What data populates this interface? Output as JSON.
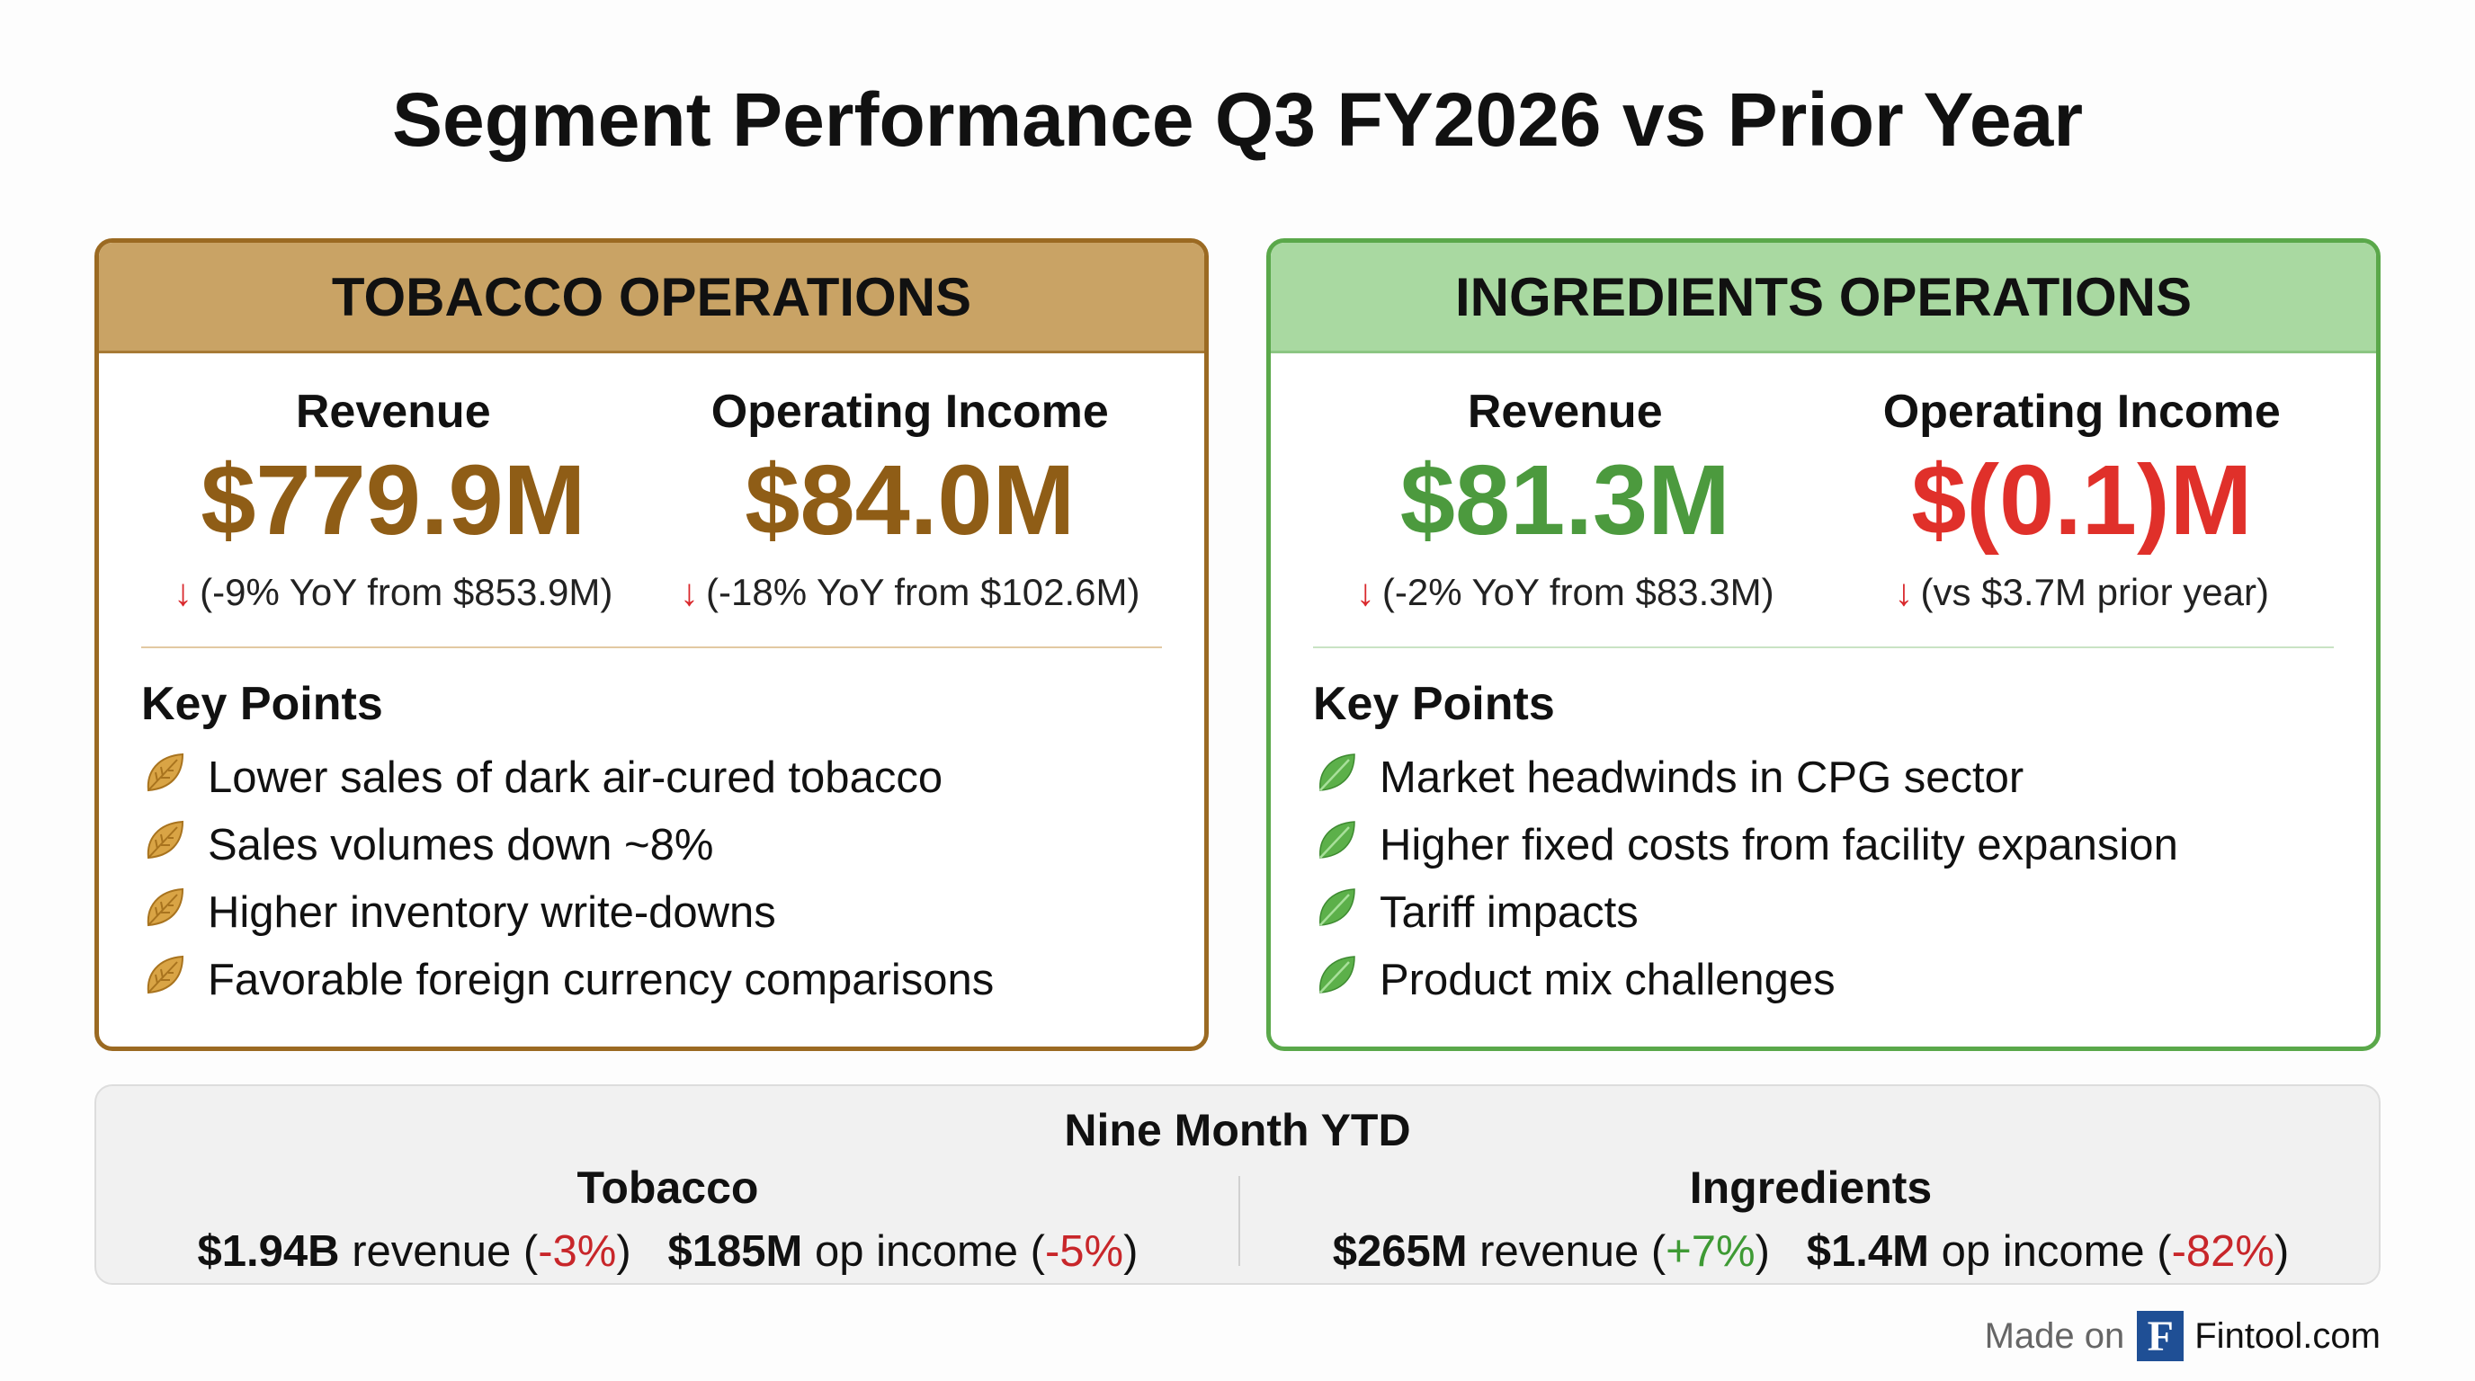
{
  "title": "Segment Performance Q3 FY2026 vs Prior Year",
  "colors": {
    "tobacco_accent": "#8f5d16",
    "tobacco_header": "#c9a365",
    "ingredients_header": "#a9d9a1",
    "green": "#4c9a3e",
    "red": "#e0302a"
  },
  "tobacco": {
    "header": "TOBACCO OPERATIONS",
    "revenue": {
      "label": "Revenue",
      "value": "$779.9M",
      "change": "(-9% YoY from $853.9M)",
      "icon": "arrow-down-icon"
    },
    "op_income": {
      "label": "Operating Income",
      "value": "$84.0M",
      "change": "(-18% YoY from $102.6M)",
      "icon": "arrow-down-icon"
    },
    "key_points_title": "Key Points",
    "bullet_icon": "tobacco-leaf-icon",
    "key_points": [
      "Lower sales of dark air-cured tobacco",
      "Sales volumes down ~8%",
      "Higher inventory write-downs",
      "Favorable foreign currency comparisons"
    ]
  },
  "ingredients": {
    "header": "INGREDIENTS OPERATIONS",
    "revenue": {
      "label": "Revenue",
      "value": "$81.3M",
      "change": "(-2% YoY from $83.3M)",
      "icon": "arrow-down-icon"
    },
    "op_income": {
      "label": "Operating Income",
      "value": "$(0.1)M",
      "change": "(vs $3.7M prior year)",
      "icon": "arrow-down-icon"
    },
    "key_points_title": "Key Points",
    "bullet_icon": "green-leaf-icon",
    "key_points": [
      "Market headwinds in CPG sector",
      "Higher fixed costs from facility expansion",
      "Tariff impacts",
      "Product mix challenges"
    ]
  },
  "ytd": {
    "title": "Nine Month YTD",
    "tobacco": {
      "label": "Tobacco",
      "revenue": "$1.94B",
      "revenue_word": "revenue",
      "revenue_change": "-3%",
      "op_income": "$185M",
      "op_income_word": "op income",
      "op_income_change": "-5%"
    },
    "ingredients": {
      "label": "Ingredients",
      "revenue": "$265M",
      "revenue_word": "revenue",
      "revenue_change": "+7%",
      "op_income": "$1.4M",
      "op_income_word": "op income",
      "op_income_change": "-82%"
    }
  },
  "footer": {
    "made_on": "Made on",
    "logo_letter": "F",
    "brand": "Fintool.com"
  }
}
